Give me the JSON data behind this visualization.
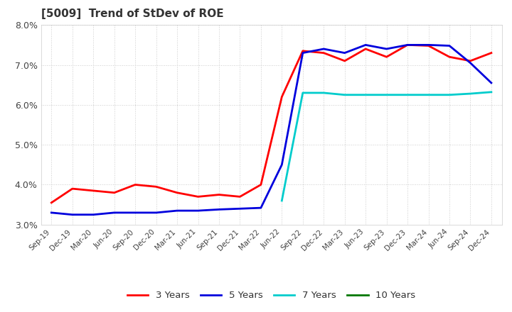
{
  "title": "[5009]  Trend of StDev of ROE",
  "ylim": [
    0.03,
    0.08
  ],
  "yticks": [
    0.03,
    0.04,
    0.05,
    0.06,
    0.07,
    0.08
  ],
  "background_color": "#ffffff",
  "grid_color": "#cccccc",
  "series": {
    "3 Years": {
      "color": "#ff0000",
      "y": [
        0.0355,
        0.039,
        0.0385,
        0.038,
        0.04,
        0.0395,
        0.038,
        0.037,
        0.0375,
        0.037,
        0.04,
        0.062,
        0.0735,
        0.073,
        0.071,
        0.074,
        0.072,
        0.075,
        0.0748,
        0.072,
        0.071,
        0.073
      ]
    },
    "5 Years": {
      "color": "#0000dd",
      "y": [
        0.033,
        0.0325,
        0.0325,
        0.033,
        0.033,
        0.033,
        0.0335,
        0.0335,
        0.0338,
        0.034,
        0.0342,
        0.045,
        0.073,
        0.074,
        0.073,
        0.075,
        0.074,
        0.075,
        0.075,
        0.0748,
        0.0705,
        0.0655
      ]
    },
    "7 Years": {
      "color": "#00cccc",
      "y": [
        null,
        null,
        null,
        null,
        null,
        null,
        null,
        null,
        null,
        null,
        null,
        0.036,
        0.063,
        0.063,
        0.0625,
        0.0625,
        0.0625,
        0.0625,
        0.0625,
        0.0625,
        0.0628,
        0.0632
      ]
    },
    "10 Years": {
      "color": "#007700",
      "y": [
        null,
        null,
        null,
        null,
        null,
        null,
        null,
        null,
        null,
        null,
        null,
        null,
        null,
        null,
        null,
        null,
        null,
        null,
        null,
        null,
        null,
        null
      ]
    }
  },
  "xtick_labels": [
    "Sep-19",
    "Dec-19",
    "Mar-20",
    "Jun-20",
    "Sep-20",
    "Dec-20",
    "Mar-21",
    "Jun-21",
    "Sep-21",
    "Dec-21",
    "Mar-22",
    "Jun-22",
    "Sep-22",
    "Dec-22",
    "Mar-23",
    "Jun-23",
    "Sep-23",
    "Dec-23",
    "Mar-24",
    "Jun-24",
    "Sep-24",
    "Dec-24"
  ],
  "legend_labels": [
    "3 Years",
    "5 Years",
    "7 Years",
    "10 Years"
  ]
}
